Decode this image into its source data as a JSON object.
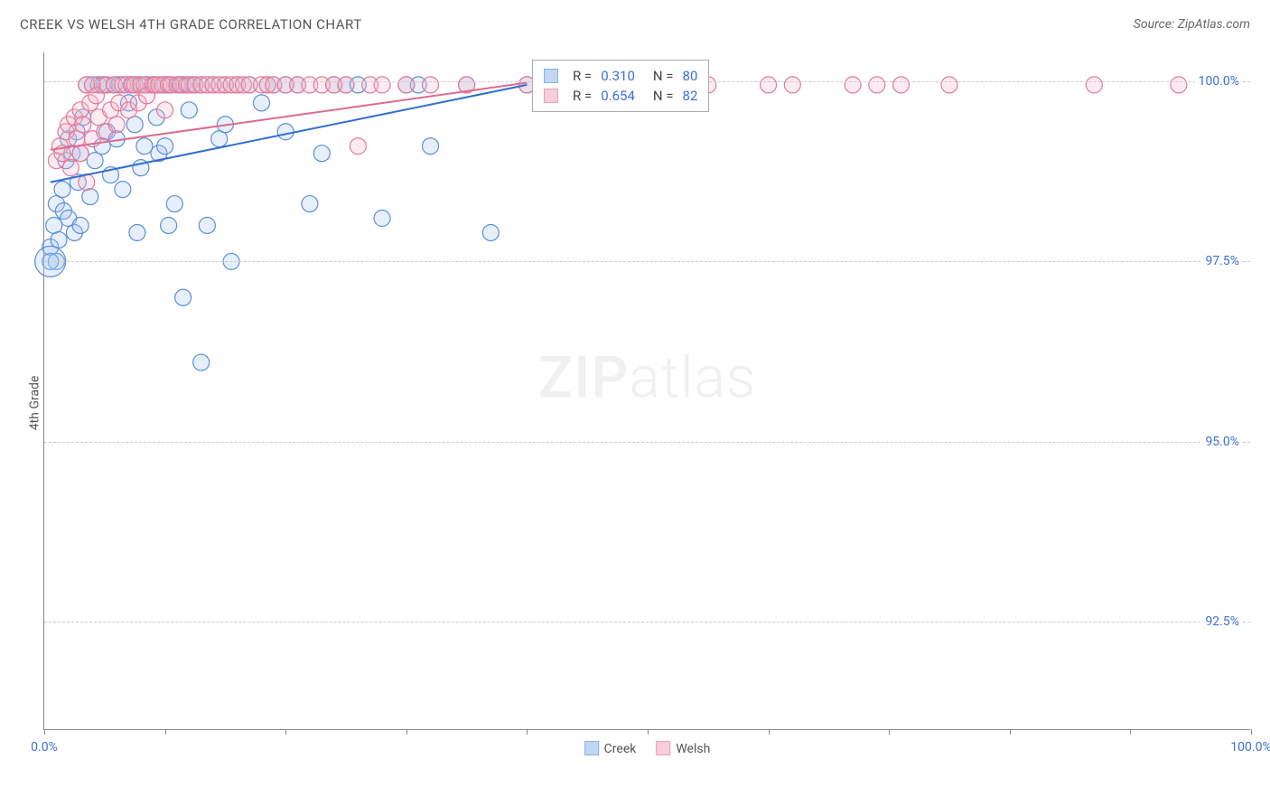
{
  "title": "CREEK VS WELSH 4TH GRADE CORRELATION CHART",
  "source": "Source: ZipAtlas.com",
  "ylabel": "4th Grade",
  "watermark_bold": "ZIP",
  "watermark_light": "atlas",
  "chart": {
    "type": "scatter",
    "background_color": "#ffffff",
    "grid_color": "#cccccc",
    "axis_color": "#888888",
    "text_color": "#555555",
    "value_color": "#3b6fd8",
    "xlim": [
      0,
      100
    ],
    "ylim": [
      91.0,
      100.4
    ],
    "xtick_positions": [
      0,
      10,
      20,
      30,
      40,
      50,
      60,
      70,
      80,
      90,
      100
    ],
    "xtick_labels": {
      "0": "0.0%",
      "100": "100.0%"
    },
    "ytick_positions": [
      92.5,
      95.0,
      97.5,
      100.0
    ],
    "ytick_labels": [
      "92.5%",
      "95.0%",
      "97.5%",
      "100.0%"
    ],
    "marker_r": 9,
    "marker_stroke_width": 1.2,
    "fill_opacity": 0.28,
    "line_width": 2,
    "series": [
      {
        "name": "Creek",
        "fill": "#a8c5f0",
        "stroke": "#5b8fd8",
        "line_color": "#2f6fd0",
        "R": "0.310",
        "N": "80",
        "trend": {
          "x1": 0.5,
          "y1": 98.6,
          "x2": 40,
          "y2": 99.95
        },
        "points": [
          [
            0.5,
            97.7
          ],
          [
            0.8,
            98.0
          ],
          [
            1.0,
            98.3
          ],
          [
            1.2,
            97.8
          ],
          [
            1.5,
            98.5
          ],
          [
            1.6,
            98.2
          ],
          [
            1.8,
            98.9
          ],
          [
            2.0,
            98.1
          ],
          [
            2.0,
            99.2
          ],
          [
            2.3,
            99.0
          ],
          [
            2.5,
            97.9
          ],
          [
            2.7,
            99.3
          ],
          [
            2.8,
            98.6
          ],
          [
            3.0,
            99.0
          ],
          [
            3.0,
            98.0
          ],
          [
            3.2,
            99.5
          ],
          [
            3.5,
            99.95
          ],
          [
            3.8,
            98.4
          ],
          [
            4.0,
            99.95
          ],
          [
            4.2,
            98.9
          ],
          [
            4.5,
            99.95
          ],
          [
            4.8,
            99.1
          ],
          [
            5.0,
            99.95
          ],
          [
            5.2,
            99.3
          ],
          [
            5.5,
            98.7
          ],
          [
            5.8,
            99.95
          ],
          [
            6.0,
            99.2
          ],
          [
            6.2,
            99.95
          ],
          [
            6.5,
            98.5
          ],
          [
            7.0,
            99.7
          ],
          [
            7.2,
            99.95
          ],
          [
            7.5,
            99.4
          ],
          [
            7.8,
            99.95
          ],
          [
            8.0,
            98.8
          ],
          [
            8.3,
            99.1
          ],
          [
            8.5,
            99.95
          ],
          [
            9.0,
            99.95
          ],
          [
            9.3,
            99.5
          ],
          [
            9.5,
            99.0
          ],
          [
            10.0,
            99.1
          ],
          [
            10.0,
            99.95
          ],
          [
            10.3,
            99.95
          ],
          [
            10.8,
            98.3
          ],
          [
            11.2,
            99.95
          ],
          [
            11.5,
            99.95
          ],
          [
            12.0,
            99.6
          ],
          [
            12.3,
            99.95
          ],
          [
            13.0,
            99.95
          ],
          [
            13.5,
            98.0
          ],
          [
            14.0,
            99.95
          ],
          [
            14.5,
            99.2
          ],
          [
            15.0,
            99.95
          ],
          [
            15.0,
            99.4
          ],
          [
            16.0,
            99.95
          ],
          [
            17.0,
            99.95
          ],
          [
            18.0,
            99.7
          ],
          [
            18.5,
            99.95
          ],
          [
            19.0,
            99.95
          ],
          [
            20.0,
            99.3
          ],
          [
            20.0,
            99.95
          ],
          [
            21.0,
            99.95
          ],
          [
            22.0,
            98.3
          ],
          [
            23.0,
            99.0
          ],
          [
            24.0,
            99.95
          ],
          [
            25.0,
            99.95
          ],
          [
            26.0,
            99.95
          ],
          [
            28.0,
            98.1
          ],
          [
            30.0,
            99.95
          ],
          [
            31.0,
            99.95
          ],
          [
            32.0,
            99.1
          ],
          [
            35.0,
            99.95
          ],
          [
            37.0,
            97.9
          ],
          [
            40.0,
            99.95
          ],
          [
            10.3,
            98.0
          ],
          [
            11.5,
            97.0
          ],
          [
            13.0,
            96.1
          ],
          [
            1.0,
            97.5
          ],
          [
            7.7,
            97.9
          ],
          [
            15.5,
            97.5
          ],
          [
            0.5,
            97.5
          ]
        ]
      },
      {
        "name": "Welsh",
        "fill": "#f5b8c8",
        "stroke": "#e47a9a",
        "line_color": "#de6b8f",
        "R": "0.654",
        "N": "82",
        "trend": {
          "x1": 0.5,
          "y1": 99.05,
          "x2": 40,
          "y2": 99.98
        },
        "points": [
          [
            1.0,
            98.9
          ],
          [
            1.3,
            99.1
          ],
          [
            1.5,
            99.0
          ],
          [
            1.8,
            99.3
          ],
          [
            2.0,
            99.4
          ],
          [
            2.2,
            98.8
          ],
          [
            2.5,
            99.5
          ],
          [
            2.7,
            99.2
          ],
          [
            3.0,
            99.6
          ],
          [
            3.0,
            99.0
          ],
          [
            3.2,
            99.4
          ],
          [
            3.5,
            99.95
          ],
          [
            3.5,
            98.6
          ],
          [
            3.8,
            99.7
          ],
          [
            4.0,
            99.95
          ],
          [
            4.0,
            99.2
          ],
          [
            4.3,
            99.8
          ],
          [
            4.5,
            99.5
          ],
          [
            4.8,
            99.95
          ],
          [
            5.0,
            99.3
          ],
          [
            5.2,
            99.95
          ],
          [
            5.5,
            99.6
          ],
          [
            5.8,
            99.95
          ],
          [
            6.0,
            99.4
          ],
          [
            6.2,
            99.7
          ],
          [
            6.5,
            99.95
          ],
          [
            6.8,
            99.95
          ],
          [
            7.0,
            99.6
          ],
          [
            7.3,
            99.95
          ],
          [
            7.5,
            99.95
          ],
          [
            7.8,
            99.7
          ],
          [
            8.0,
            99.95
          ],
          [
            8.3,
            99.95
          ],
          [
            8.5,
            99.8
          ],
          [
            9.0,
            99.95
          ],
          [
            9.2,
            99.95
          ],
          [
            9.5,
            99.95
          ],
          [
            9.8,
            99.95
          ],
          [
            10.0,
            99.6
          ],
          [
            10.3,
            99.95
          ],
          [
            10.5,
            99.95
          ],
          [
            11.0,
            99.95
          ],
          [
            11.3,
            99.95
          ],
          [
            11.8,
            99.95
          ],
          [
            12.0,
            99.95
          ],
          [
            12.5,
            99.95
          ],
          [
            13.0,
            99.95
          ],
          [
            13.5,
            99.95
          ],
          [
            14.0,
            99.95
          ],
          [
            14.5,
            99.95
          ],
          [
            15.0,
            99.95
          ],
          [
            15.5,
            99.95
          ],
          [
            16.0,
            99.95
          ],
          [
            16.5,
            99.95
          ],
          [
            17.0,
            99.95
          ],
          [
            18.0,
            99.95
          ],
          [
            18.5,
            99.95
          ],
          [
            19.0,
            99.95
          ],
          [
            20.0,
            99.95
          ],
          [
            21.0,
            99.95
          ],
          [
            22.0,
            99.95
          ],
          [
            23.0,
            99.95
          ],
          [
            24.0,
            99.95
          ],
          [
            25.0,
            99.95
          ],
          [
            26.0,
            99.1
          ],
          [
            27.0,
            99.95
          ],
          [
            28.0,
            99.95
          ],
          [
            30.0,
            99.95
          ],
          [
            32.0,
            99.95
          ],
          [
            35.0,
            99.95
          ],
          [
            40.0,
            99.95
          ],
          [
            45.0,
            99.95
          ],
          [
            52.0,
            99.95
          ],
          [
            55.0,
            99.95
          ],
          [
            60.0,
            99.95
          ],
          [
            62.0,
            99.95
          ],
          [
            67.0,
            99.95
          ],
          [
            69.0,
            99.95
          ],
          [
            71.0,
            99.95
          ],
          [
            75.0,
            99.95
          ],
          [
            87.0,
            99.95
          ],
          [
            94.0,
            99.95
          ]
        ]
      }
    ],
    "large_markers": [
      {
        "series": 0,
        "x": 0.5,
        "y": 97.5,
        "r": 17
      }
    ],
    "bottom_legend": [
      {
        "label": "Creek",
        "fill": "#a8c5f0",
        "stroke": "#5b8fd8"
      },
      {
        "label": "Welsh",
        "fill": "#f5b8c8",
        "stroke": "#e47a9a"
      }
    ]
  }
}
